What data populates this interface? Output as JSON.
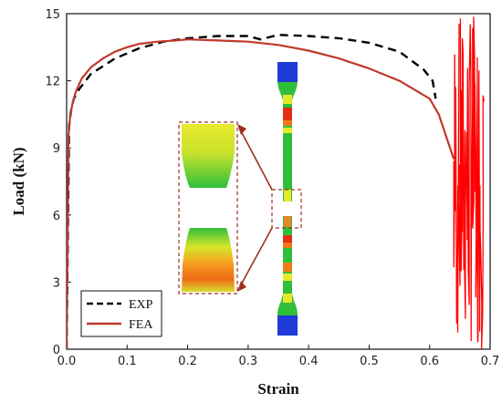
{
  "chart_data": {
    "type": "line",
    "xlabel": "Strain",
    "ylabel": "Load (kN)",
    "xlim": [
      0.0,
      0.7
    ],
    "ylim": [
      0,
      15
    ],
    "x_ticks": [
      0.0,
      0.1,
      0.2,
      0.3,
      0.4,
      0.5,
      0.6,
      0.7
    ],
    "x_tick_labels": [
      "0.0",
      "0.1",
      "0.2",
      "0.3",
      "0.4",
      "0.5",
      "0.6",
      "0.7"
    ],
    "y_ticks": [
      0,
      3,
      6,
      9,
      12,
      15
    ],
    "y_tick_labels": [
      "0",
      "3",
      "6",
      "9",
      "12",
      "15"
    ],
    "legend_position": "bottom-left",
    "series": [
      {
        "name": "EXP",
        "color": "#000000",
        "style": "dashed",
        "x": [
          0.0,
          0.004,
          0.008,
          0.012,
          0.02,
          0.04,
          0.08,
          0.12,
          0.16,
          0.2,
          0.25,
          0.3,
          0.32,
          0.35,
          0.4,
          0.45,
          0.5,
          0.55,
          0.59,
          0.605,
          0.61
        ],
        "y": [
          0.0,
          10.0,
          10.8,
          11.2,
          11.6,
          12.3,
          13.0,
          13.45,
          13.75,
          13.9,
          14.0,
          14.0,
          13.85,
          14.05,
          14.0,
          13.9,
          13.7,
          13.3,
          12.5,
          12.0,
          11.2
        ]
      },
      {
        "name": "FEA",
        "color": "#c0392b",
        "style": "solid",
        "x": [
          0.0,
          0.003,
          0.006,
          0.01,
          0.015,
          0.025,
          0.04,
          0.06,
          0.08,
          0.1,
          0.12,
          0.15,
          0.18,
          0.2,
          0.25,
          0.3,
          0.35,
          0.4,
          0.45,
          0.5,
          0.55,
          0.6,
          0.615,
          0.64
        ],
        "y": [
          0.0,
          9.5,
          10.5,
          11.0,
          11.5,
          12.1,
          12.6,
          13.0,
          13.3,
          13.5,
          13.65,
          13.75,
          13.8,
          13.85,
          13.8,
          13.75,
          13.6,
          13.35,
          13.0,
          12.55,
          12.0,
          11.2,
          10.5,
          8.5
        ]
      }
    ],
    "fracture_noise": {
      "color": "#ff0000",
      "x_range": [
        0.64,
        0.69
      ],
      "y_range": [
        0.0,
        15.0
      ]
    }
  },
  "inset": {
    "colors": {
      "blue": "#1f3ad6",
      "green": "#2fbf3a",
      "yellow": "#e6e82a",
      "orange": "#f07a1a",
      "red": "#e03010",
      "arrow": "#a0301e"
    }
  }
}
